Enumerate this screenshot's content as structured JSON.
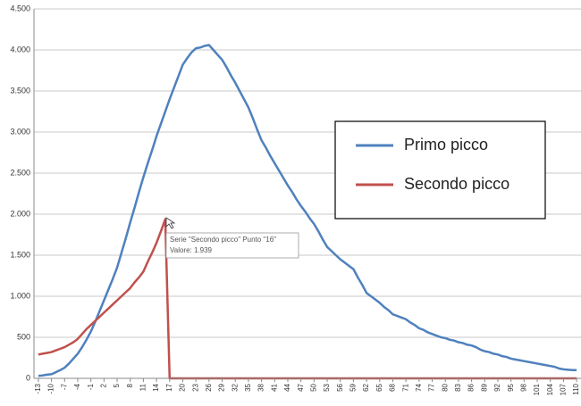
{
  "chart_data": {
    "type": "line",
    "x": [
      -13,
      -12,
      -11,
      -10,
      -9,
      -8,
      -7,
      -6,
      -5,
      -4,
      -3,
      -2,
      -1,
      0,
      1,
      2,
      3,
      4,
      5,
      6,
      7,
      8,
      9,
      10,
      11,
      12,
      13,
      14,
      15,
      16,
      17,
      18,
      19,
      20,
      21,
      22,
      23,
      24,
      25,
      26,
      27,
      28,
      29,
      30,
      31,
      32,
      33,
      34,
      35,
      36,
      37,
      38,
      39,
      40,
      41,
      42,
      43,
      44,
      45,
      46,
      47,
      48,
      49,
      50,
      51,
      52,
      53,
      54,
      55,
      56,
      57,
      58,
      59,
      60,
      61,
      62,
      63,
      64,
      65,
      66,
      67,
      68,
      69,
      70,
      71,
      72,
      73,
      74,
      75,
      76,
      77,
      78,
      79,
      80,
      81,
      82,
      83,
      84,
      85,
      86,
      87,
      88,
      89,
      90,
      91,
      92,
      93,
      94,
      95,
      96,
      97,
      98,
      99,
      100,
      101,
      102,
      103,
      104,
      105,
      106,
      107,
      108,
      109,
      110
    ],
    "series": [
      {
        "name": "Primo picco",
        "color": "#4f81bd",
        "values": [
          30,
          35,
          45,
          50,
          75,
          100,
          130,
          180,
          240,
          300,
          380,
          470,
          570,
          690,
          820,
          950,
          1080,
          1210,
          1350,
          1530,
          1710,
          1900,
          2080,
          2270,
          2450,
          2620,
          2780,
          2950,
          3100,
          3250,
          3400,
          3540,
          3680,
          3820,
          3900,
          3970,
          4020,
          4030,
          4050,
          4060,
          4000,
          3940,
          3880,
          3790,
          3690,
          3600,
          3500,
          3400,
          3300,
          3170,
          3030,
          2900,
          2810,
          2710,
          2620,
          2530,
          2440,
          2350,
          2270,
          2180,
          2100,
          2030,
          1950,
          1880,
          1790,
          1690,
          1600,
          1550,
          1500,
          1450,
          1410,
          1370,
          1330,
          1230,
          1140,
          1040,
          1000,
          960,
          920,
          870,
          830,
          780,
          760,
          740,
          720,
          680,
          650,
          610,
          590,
          560,
          540,
          520,
          500,
          490,
          470,
          460,
          440,
          430,
          410,
          400,
          380,
          350,
          330,
          320,
          300,
          290,
          270,
          260,
          240,
          230,
          220,
          210,
          200,
          190,
          180,
          170,
          160,
          150,
          140,
          120,
          110,
          105,
          100,
          100
        ]
      },
      {
        "name": "Secondo picco",
        "color": "#c0504d",
        "values": [
          290,
          300,
          310,
          320,
          340,
          360,
          380,
          410,
          440,
          480,
          540,
          600,
          650,
          700,
          750,
          800,
          850,
          900,
          950,
          1000,
          1050,
          1100,
          1170,
          1230,
          1300,
          1420,
          1530,
          1650,
          1790,
          1939,
          0,
          0,
          0,
          0,
          0,
          0,
          0,
          0,
          0,
          0,
          0,
          0,
          0,
          0,
          0,
          0,
          0,
          0,
          0,
          0,
          0,
          0,
          0,
          0,
          0,
          0,
          0,
          0,
          0,
          0,
          0,
          0,
          0,
          0,
          0,
          0,
          0,
          0,
          0,
          0,
          0,
          0,
          0,
          0,
          0,
          0,
          0,
          0,
          0,
          0,
          0,
          0,
          0,
          0,
          0,
          0,
          0,
          0,
          0,
          0,
          0,
          0,
          0,
          0,
          0,
          0,
          0,
          0,
          0,
          0,
          0,
          0,
          0,
          0,
          0,
          0,
          0,
          0,
          0,
          0,
          0,
          0,
          0,
          0,
          0,
          0,
          0,
          0,
          0,
          0,
          0,
          0,
          0,
          0
        ]
      }
    ],
    "xlim": [
      -14,
      111
    ],
    "xticks": [
      -13,
      -10,
      -7,
      -4,
      -1,
      2,
      5,
      8,
      11,
      14,
      17,
      20,
      23,
      26,
      29,
      32,
      35,
      38,
      41,
      44,
      47,
      50,
      53,
      56,
      59,
      62,
      65,
      68,
      71,
      74,
      77,
      80,
      83,
      86,
      89,
      92,
      95,
      98,
      101,
      104,
      107,
      110
    ],
    "ylim": [
      0,
      4500
    ],
    "yticks": [
      0,
      500,
      {
        "value": 1000,
        "label": "1.000"
      },
      {
        "value": 1500,
        "label": "1.500"
      },
      {
        "value": 2000,
        "label": "2.000"
      },
      {
        "value": 2500,
        "label": "2.500"
      },
      {
        "value": 3000,
        "label": "3.000"
      },
      {
        "value": 3500,
        "label": "3.500"
      },
      {
        "value": 4000,
        "label": "4.000"
      },
      {
        "value": 4500,
        "label": "4.500"
      }
    ],
    "grid": true,
    "legend": "right",
    "tooltip": [
      "Serie \"Secondo picco\" Punto \"16\"",
      "Valore: 1.939"
    ]
  }
}
